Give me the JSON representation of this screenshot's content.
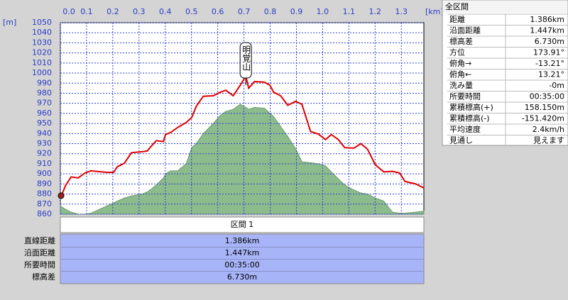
{
  "chart_data": {
    "type": "line",
    "xlabel": "[km]",
    "ylabel": "[m]",
    "x": [
      0,
      0.019,
      0.041,
      0.068,
      0.095,
      0.117,
      0.176,
      0.203,
      0.217,
      0.244,
      0.271,
      0.312,
      0.331,
      0.347,
      0.366,
      0.393,
      0.401,
      0.42,
      0.447,
      0.48,
      0.501,
      0.518,
      0.545,
      0.583,
      0.61,
      0.631,
      0.659,
      0.686,
      0.707,
      0.718,
      0.74,
      0.778,
      0.799,
      0.813,
      0.84,
      0.867,
      0.897,
      0.921,
      0.954,
      0.984,
      1.011,
      1.033,
      1.06,
      1.084,
      1.119,
      1.146,
      1.171,
      1.201,
      1.233,
      1.266,
      1.293,
      1.314,
      1.355,
      1.386
    ],
    "series": [
      {
        "color": "#e00000",
        "kind": "line",
        "values": [
          875.5,
          888,
          897,
          896,
          901,
          903,
          901.5,
          901.5,
          907,
          910.5,
          921,
          922,
          922.6,
          927.6,
          933,
          932,
          939,
          941,
          946,
          951,
          956,
          967,
          977,
          977.5,
          981,
          983,
          977.5,
          988,
          997,
          985,
          991.6,
          991,
          988,
          981,
          977.5,
          968,
          972,
          969,
          942,
          939.5,
          934,
          939,
          934,
          926,
          925.5,
          930,
          924.5,
          909,
          902,
          902.5,
          901,
          892.5,
          890,
          886
        ]
      },
      {
        "color": "#8cbc8c",
        "kind": "area",
        "values": [
          868,
          865,
          862,
          860,
          860,
          861,
          868,
          871,
          873,
          876,
          878,
          880,
          882,
          885,
          889,
          896,
          900,
          903,
          903,
          910,
          926,
          930,
          940,
          950,
          958,
          962,
          964,
          969,
          966,
          964,
          966,
          965,
          960,
          957,
          947,
          937,
          925,
          912,
          911,
          910,
          908,
          902,
          895,
          889,
          884,
          881,
          880,
          876,
          873,
          862,
          861,
          861,
          862,
          863
        ]
      }
    ],
    "xlim": [
      0,
      1.386
    ],
    "xticks": [
      {
        "value": 0,
        "label": "0.0"
      },
      0.1,
      0.2,
      0.3,
      0.4,
      0.5,
      0.6,
      0.7,
      0.8,
      0.9,
      {
        "value": 1,
        "label": "1.0"
      },
      1.1,
      1.2,
      1.3
    ],
    "ylim": [
      860,
      1050
    ],
    "yticks": [
      860,
      870,
      880,
      890,
      900,
      910,
      920,
      930,
      940,
      950,
      960,
      970,
      980,
      990,
      1000,
      1010,
      1020,
      1030,
      1040,
      1050
    ],
    "grid": true,
    "annotation": {
      "text": "明覚山",
      "x": 0.707
    }
  },
  "summary_panel": {
    "title": "全区間",
    "rows": [
      [
        "距離",
        "1.386km"
      ],
      [
        "沿面距離",
        "1.447km"
      ],
      [
        "標高差",
        "6.730m"
      ],
      [
        "方位",
        "173.91°"
      ],
      [
        "俯角→",
        "-13.21°"
      ],
      [
        "俯角←",
        "13.21°"
      ],
      [
        "洗み量",
        "-0m"
      ],
      [
        "所要時間",
        "00:35:00"
      ],
      [
        "累積標高(+)",
        "158.150m"
      ],
      [
        "累積標高(-)",
        "-151.420m"
      ],
      [
        "平均速度",
        "2.4km/h"
      ],
      [
        "見通し",
        "見えます"
      ]
    ]
  },
  "section_table": {
    "title": "区間 1",
    "rows": [
      [
        "直線距離",
        "1.386km"
      ],
      [
        "沿面距離",
        "1.447km"
      ],
      [
        "所要時間",
        "00:35:00"
      ],
      [
        "標高差",
        "6.730m"
      ]
    ]
  }
}
